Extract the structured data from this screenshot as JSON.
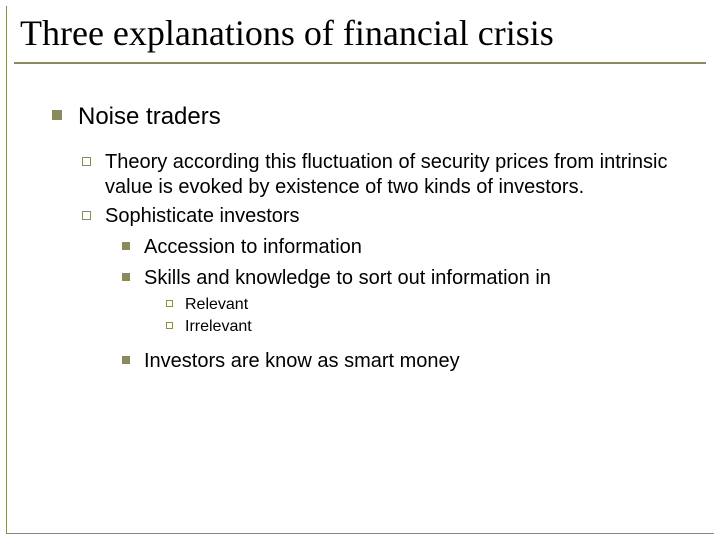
{
  "colors": {
    "accent": "#8a8a5c",
    "text": "#000000",
    "background": "#ffffff"
  },
  "title": "Three explanations of financial crisis",
  "lvl1_heading": "Noise traders",
  "lvl2_items": [
    "Theory according this fluctuation of security prices from intrinsic value is evoked by existence of two kinds of investors.",
    " Sophisticate investors"
  ],
  "lvl3_group_a": [
    "Accession to information",
    "Skills and knowledge to sort out information in"
  ],
  "lvl4_items": [
    "Relevant",
    "Irrelevant"
  ],
  "lvl3_group_b": [
    "Investors are know as smart money"
  ]
}
